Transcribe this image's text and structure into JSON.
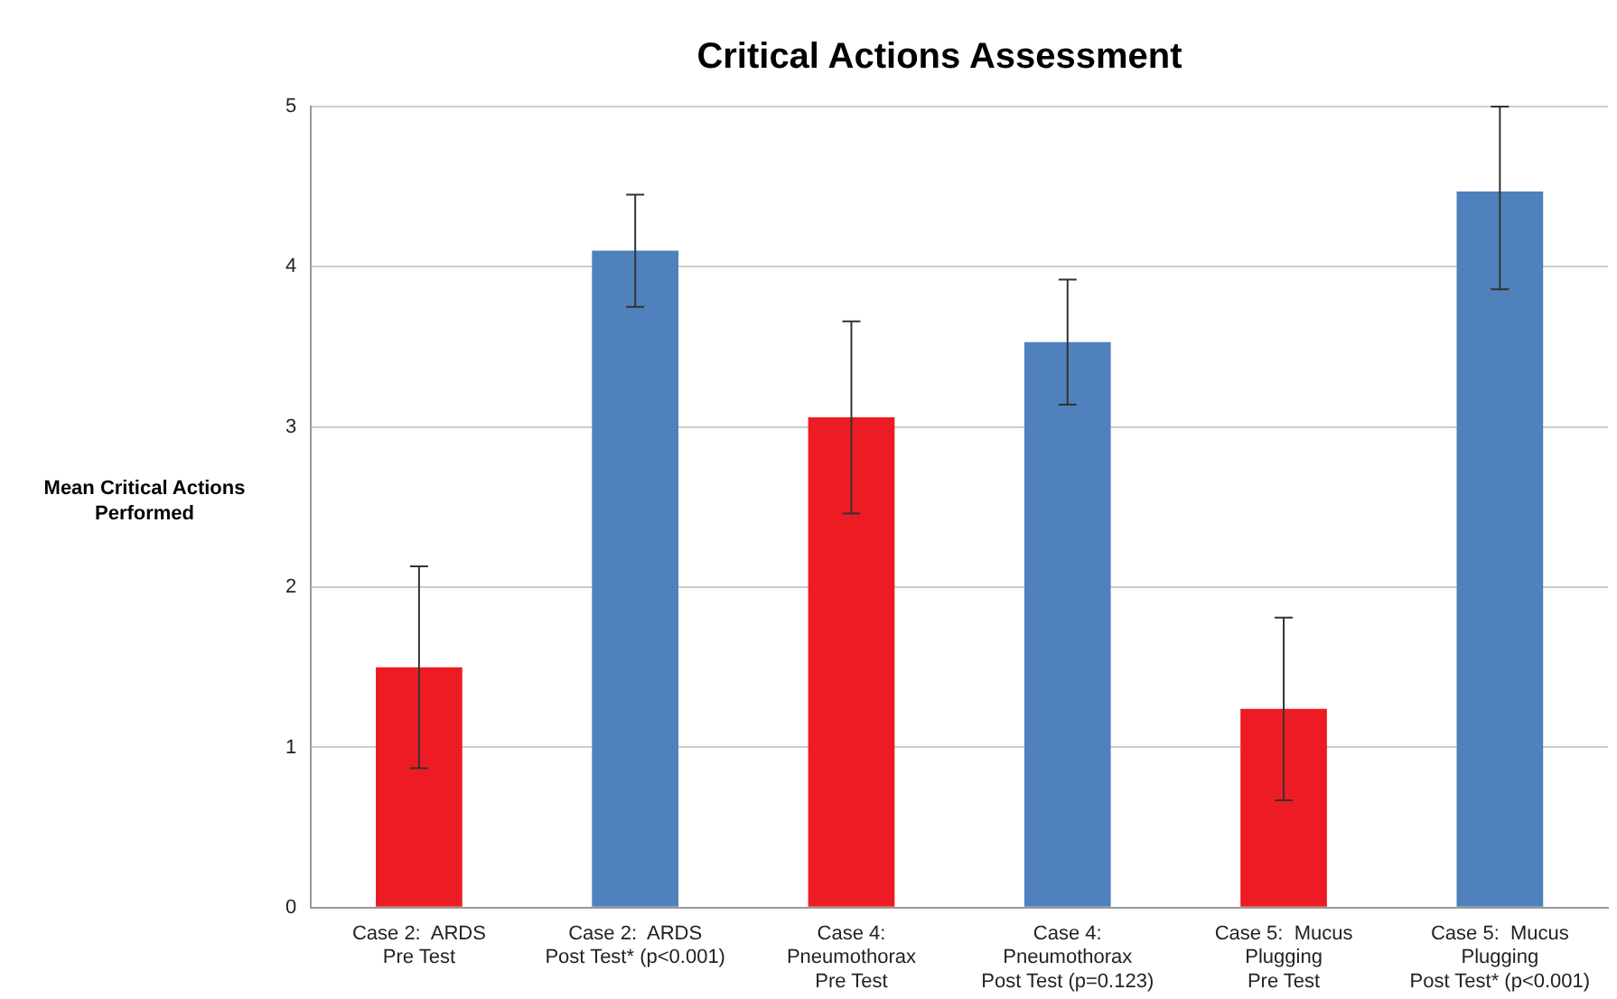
{
  "chart_data": {
    "type": "bar",
    "title": "Critical Actions Assessment",
    "ylabel": "Mean Critical Actions Performed",
    "categories": [
      "Case 2:  ARDS\nPre Test",
      "Case 2:  ARDS\nPost Test* (p<0.001)",
      "Case 4:\nPneumothorax\nPre Test",
      "Case 4:\nPneumothorax\nPost Test (p=0.123)",
      "Case 5:  Mucus\nPlugging\nPre Test",
      "Case 5:  Mucus\nPlugging\nPost Test* (p<0.001)"
    ],
    "values": [
      1.5,
      4.1,
      3.06,
      3.53,
      1.24,
      4.47
    ],
    "colors": [
      "#ed1c24",
      "#4f81bd",
      "#ed1c24",
      "#4f81bd",
      "#ed1c24",
      "#4f81bd"
    ],
    "errors": [
      0.63,
      0.35,
      0.6,
      0.39,
      0.57,
      [
        3.86,
        5.0
      ]
    ],
    "ylim": [
      0,
      5
    ],
    "yticks": [
      0,
      1,
      2,
      3,
      4,
      5
    ],
    "grid": "y",
    "legend": false
  }
}
